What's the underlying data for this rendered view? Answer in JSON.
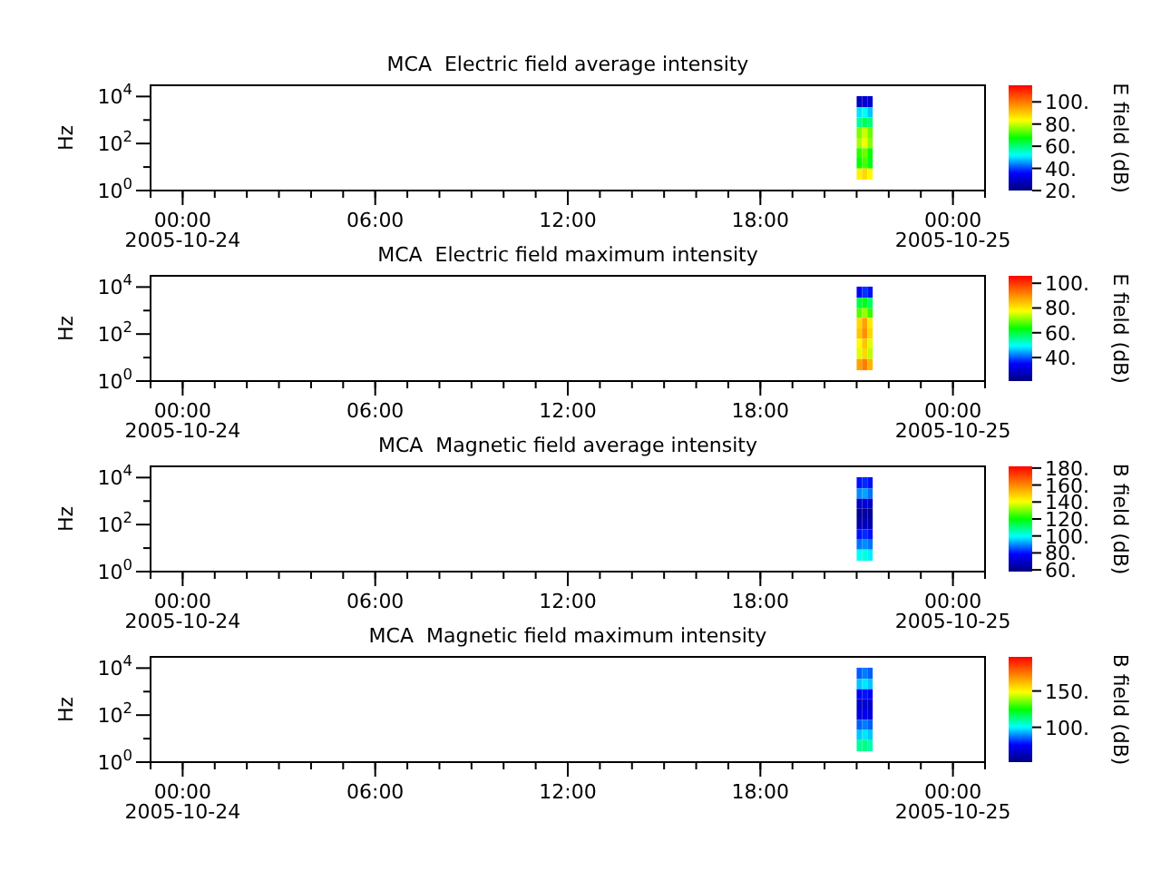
{
  "chart_data": [
    {
      "type": "heatmap",
      "title": "MCA  Electric field average intensity",
      "ylabel": "Hz",
      "clabel": "E field (dB)",
      "log": "y",
      "x": [
        "2005-10-24T21:05",
        "2005-10-24T21:15",
        "2005-10-24T21:25"
      ],
      "y": [
        6000,
        2000,
        800,
        300,
        100,
        40,
        15,
        5
      ],
      "cells": [
        [
          28,
          30,
          30
        ],
        [
          50,
          52,
          48
        ],
        [
          58,
          62,
          60
        ],
        [
          75,
          80,
          74
        ],
        [
          78,
          82,
          76
        ],
        [
          70,
          74,
          68
        ],
        [
          68,
          72,
          66
        ],
        [
          85,
          88,
          84
        ]
      ],
      "xlim": [
        "2005-10-23T23:00",
        "2005-10-25T01:00"
      ],
      "xticks": [
        {
          "value": "2005-10-24T00:00",
          "label": "00:00\n2005-10-24"
        },
        {
          "value": "2005-10-24T06:00",
          "label": "06:00"
        },
        {
          "value": "2005-10-24T12:00",
          "label": "12:00"
        },
        {
          "value": "2005-10-24T18:00",
          "label": "18:00"
        },
        {
          "value": "2005-10-25T00:00",
          "label": "00:00\n2005-10-25"
        }
      ],
      "ylim": [
        1,
        30000
      ],
      "yticks": [
        {
          "value": 1,
          "label": "10$^{0}$"
        },
        {
          "value": 10,
          "label": null
        },
        {
          "value": 100,
          "label": "10$^{2}$"
        },
        {
          "value": 1000,
          "label": null
        },
        {
          "value": 10000,
          "label": "10$^{4}$"
        }
      ],
      "clim": [
        20,
        115
      ],
      "cticks": [
        {
          "value": 20,
          "label": "20."
        },
        {
          "value": 40,
          "label": "40."
        },
        {
          "value": 60,
          "label": "60."
        },
        {
          "value": 80,
          "label": "80."
        },
        {
          "value": 100,
          "label": "100."
        }
      ]
    },
    {
      "type": "heatmap",
      "title": "MCA  Electric field maximum intensity",
      "ylabel": "Hz",
      "clabel": "E field (dB)",
      "log": "y",
      "x": [
        "2005-10-24T21:05",
        "2005-10-24T21:15",
        "2005-10-24T21:25"
      ],
      "y": [
        6000,
        2000,
        800,
        300,
        100,
        40,
        15,
        5
      ],
      "cells": [
        [
          35,
          38,
          36
        ],
        [
          60,
          62,
          58
        ],
        [
          68,
          72,
          66
        ],
        [
          82,
          88,
          80
        ],
        [
          84,
          90,
          82
        ],
        [
          78,
          84,
          76
        ],
        [
          76,
          82,
          74
        ],
        [
          88,
          92,
          86
        ]
      ],
      "xlim": [
        "2005-10-23T23:00",
        "2005-10-25T01:00"
      ],
      "xticks": [
        {
          "value": "2005-10-24T00:00",
          "label": "00:00\n2005-10-24"
        },
        {
          "value": "2005-10-24T06:00",
          "label": "06:00"
        },
        {
          "value": "2005-10-24T12:00",
          "label": "12:00"
        },
        {
          "value": "2005-10-24T18:00",
          "label": "18:00"
        },
        {
          "value": "2005-10-25T00:00",
          "label": "00:00\n2005-10-25"
        }
      ],
      "ylim": [
        1,
        30000
      ],
      "yticks": [
        {
          "value": 1,
          "label": "10$^{0}$"
        },
        {
          "value": 10,
          "label": null
        },
        {
          "value": 100,
          "label": "10$^{2}$"
        },
        {
          "value": 1000,
          "label": null
        },
        {
          "value": 10000,
          "label": "10$^{4}$"
        }
      ],
      "clim": [
        21,
        106
      ],
      "cticks": [
        {
          "value": 40,
          "label": "40."
        },
        {
          "value": 60,
          "label": "60."
        },
        {
          "value": 80,
          "label": "80."
        },
        {
          "value": 100,
          "label": "100."
        }
      ]
    },
    {
      "type": "heatmap",
      "title": "MCA  Magnetic field average intensity",
      "ylabel": "Hz",
      "clabel": "B field (dB)",
      "log": "y",
      "x": [
        "2005-10-24T21:05",
        "2005-10-24T21:15",
        "2005-10-24T21:25"
      ],
      "y": [
        6000,
        2000,
        800,
        300,
        100,
        40,
        15,
        5
      ],
      "cells": [
        [
          80,
          82,
          80
        ],
        [
          90,
          92,
          88
        ],
        [
          70,
          72,
          70
        ],
        [
          62,
          64,
          62
        ],
        [
          66,
          68,
          66
        ],
        [
          80,
          82,
          80
        ],
        [
          88,
          90,
          88
        ],
        [
          100,
          102,
          98
        ]
      ],
      "xlim": [
        "2005-10-23T23:00",
        "2005-10-25T01:00"
      ],
      "xticks": [
        {
          "value": "2005-10-24T00:00",
          "label": "00:00\n2005-10-24"
        },
        {
          "value": "2005-10-24T06:00",
          "label": "06:00"
        },
        {
          "value": "2005-10-24T12:00",
          "label": "12:00"
        },
        {
          "value": "2005-10-24T18:00",
          "label": "18:00"
        },
        {
          "value": "2005-10-25T00:00",
          "label": "00:00\n2005-10-25"
        }
      ],
      "ylim": [
        1,
        30000
      ],
      "yticks": [
        {
          "value": 1,
          "label": "10$^{0}$"
        },
        {
          "value": 10,
          "label": null
        },
        {
          "value": 100,
          "label": "10$^{2}$"
        },
        {
          "value": 1000,
          "label": null
        },
        {
          "value": 10000,
          "label": "10$^{4}$"
        }
      ],
      "clim": [
        58,
        182
      ],
      "cticks": [
        {
          "value": 60,
          "label": "60."
        },
        {
          "value": 80,
          "label": "80."
        },
        {
          "value": 100,
          "label": "100."
        },
        {
          "value": 120,
          "label": "120."
        },
        {
          "value": 140,
          "label": "140."
        },
        {
          "value": 160,
          "label": "160."
        },
        {
          "value": 180,
          "label": "180."
        }
      ]
    },
    {
      "type": "heatmap",
      "title": "MCA  Magnetic field maximum intensity",
      "ylabel": "Hz",
      "clabel": "B field (dB)",
      "log": "y",
      "x": [
        "2005-10-24T21:05",
        "2005-10-24T21:15",
        "2005-10-24T21:25"
      ],
      "y": [
        6000,
        2000,
        800,
        300,
        100,
        40,
        15,
        5
      ],
      "cells": [
        [
          85,
          88,
          85
        ],
        [
          95,
          98,
          95
        ],
        [
          75,
          78,
          75
        ],
        [
          66,
          68,
          66
        ],
        [
          70,
          72,
          70
        ],
        [
          85,
          88,
          85
        ],
        [
          95,
          98,
          95
        ],
        [
          110,
          112,
          108
        ]
      ],
      "xlim": [
        "2005-10-23T23:00",
        "2005-10-25T01:00"
      ],
      "xticks": [
        {
          "value": "2005-10-24T00:00",
          "label": "00:00\n2005-10-24"
        },
        {
          "value": "2005-10-24T06:00",
          "label": "06:00"
        },
        {
          "value": "2005-10-24T12:00",
          "label": "12:00"
        },
        {
          "value": "2005-10-24T18:00",
          "label": "18:00"
        },
        {
          "value": "2005-10-25T00:00",
          "label": "00:00\n2005-10-25"
        }
      ],
      "ylim": [
        1,
        30000
      ],
      "yticks": [
        {
          "value": 1,
          "label": "10$^{0}$"
        },
        {
          "value": 10,
          "label": null
        },
        {
          "value": 100,
          "label": "10$^{2}$"
        },
        {
          "value": 1000,
          "label": null
        },
        {
          "value": 10000,
          "label": "10$^{4}$"
        }
      ],
      "clim": [
        52,
        197
      ],
      "cticks": [
        {
          "value": 100,
          "label": "100."
        },
        {
          "value": 150,
          "label": "150."
        }
      ]
    }
  ]
}
